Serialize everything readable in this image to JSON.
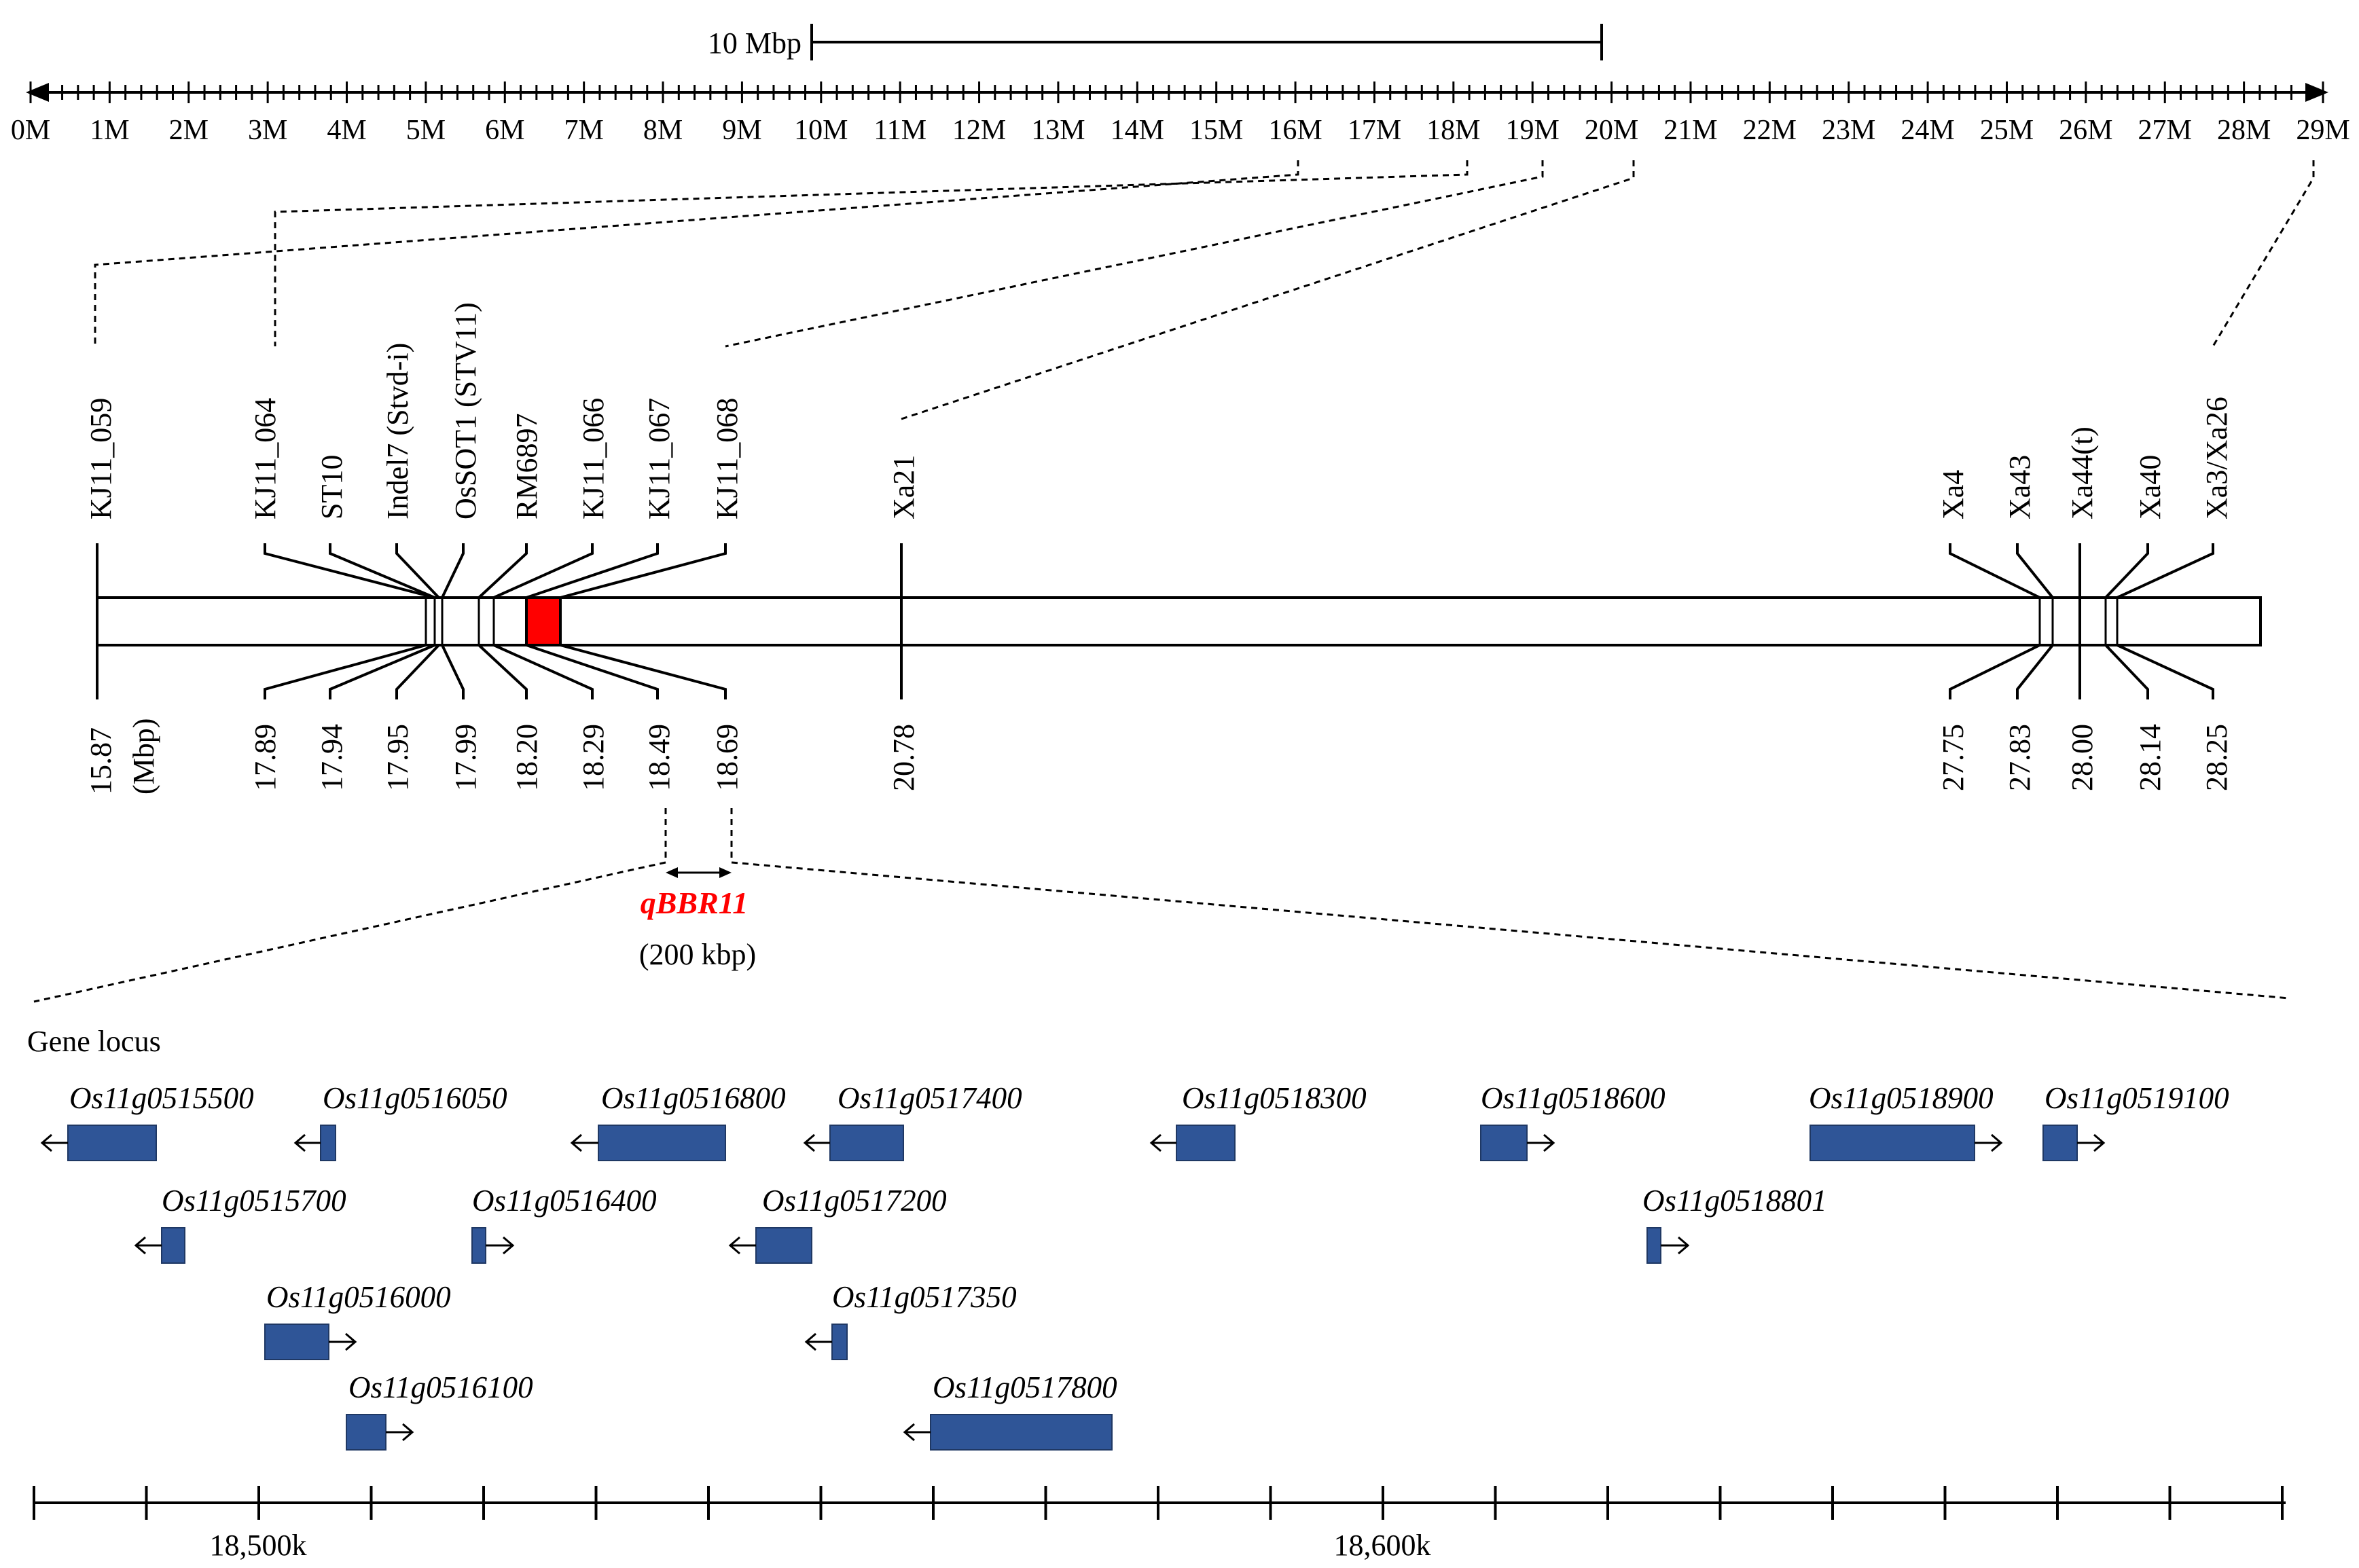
{
  "scale_bar": {
    "label": "10 Mbp"
  },
  "ruler": {
    "ticks": [
      "0M",
      "1M",
      "2M",
      "3M",
      "4M",
      "5M",
      "6M",
      "7M",
      "8M",
      "9M",
      "10M",
      "11M",
      "12M",
      "13M",
      "14M",
      "15M",
      "16M",
      "17M",
      "18M",
      "19M",
      "20M",
      "21M",
      "22M",
      "23M",
      "24M",
      "25M",
      "26M",
      "27M",
      "28M",
      "29M"
    ]
  },
  "markers": [
    {
      "name": "KJ11_059",
      "pos": "15.87"
    },
    {
      "name": "KJ11_064",
      "pos": "17.89"
    },
    {
      "name": "ST10",
      "pos": "17.94"
    },
    {
      "name": "Indel7 (Stvd-i)",
      "pos": "17.95"
    },
    {
      "name": "OsSOT1 (STV11)",
      "pos": "17.99"
    },
    {
      "name": "RM6897",
      "pos": "18.20"
    },
    {
      "name": "KJ11_066",
      "pos": "18.29"
    },
    {
      "name": "KJ11_067",
      "pos": "18.49"
    },
    {
      "name": "KJ11_068",
      "pos": "18.69"
    },
    {
      "name": "Xa21",
      "pos": "20.78"
    },
    {
      "name": "Xa4",
      "pos": "27.75"
    },
    {
      "name": "Xa43",
      "pos": "27.83"
    },
    {
      "name": "Xa44(t)",
      "pos": "28.00"
    },
    {
      "name": "Xa40",
      "pos": "28.14"
    },
    {
      "name": "Xa3/Xa26",
      "pos": "28.25"
    }
  ],
  "unit_label": "(Mbp)",
  "qtl": {
    "name": "qBBR11",
    "size": "(200 kbp)",
    "color": "#ff0000"
  },
  "gene_section": {
    "title": "Gene locus"
  },
  "genes": [
    {
      "id": "Os11g0515500",
      "strand": "-"
    },
    {
      "id": "Os11g0516050",
      "strand": "-"
    },
    {
      "id": "Os11g0516800",
      "strand": "-"
    },
    {
      "id": "Os11g0517400",
      "strand": "-"
    },
    {
      "id": "Os11g0518300",
      "strand": "-"
    },
    {
      "id": "Os11g0518600",
      "strand": "+"
    },
    {
      "id": "Os11g0518900",
      "strand": "+"
    },
    {
      "id": "Os11g0519100",
      "strand": "+"
    },
    {
      "id": "Os11g0515700",
      "strand": "-"
    },
    {
      "id": "Os11g0516400",
      "strand": "+"
    },
    {
      "id": "Os11g0517200",
      "strand": "-"
    },
    {
      "id": "Os11g0518801",
      "strand": "+"
    },
    {
      "id": "Os11g0516000",
      "strand": "+"
    },
    {
      "id": "Os11g0517350",
      "strand": "-"
    },
    {
      "id": "Os11g0516100",
      "strand": "+"
    },
    {
      "id": "Os11g0517800",
      "strand": "-"
    }
  ],
  "bottom_scale": {
    "labels": [
      "18,500k",
      "18,600k"
    ]
  },
  "colors": {
    "gene_box": "#2f5597",
    "qtl_region": "#ff0000"
  }
}
